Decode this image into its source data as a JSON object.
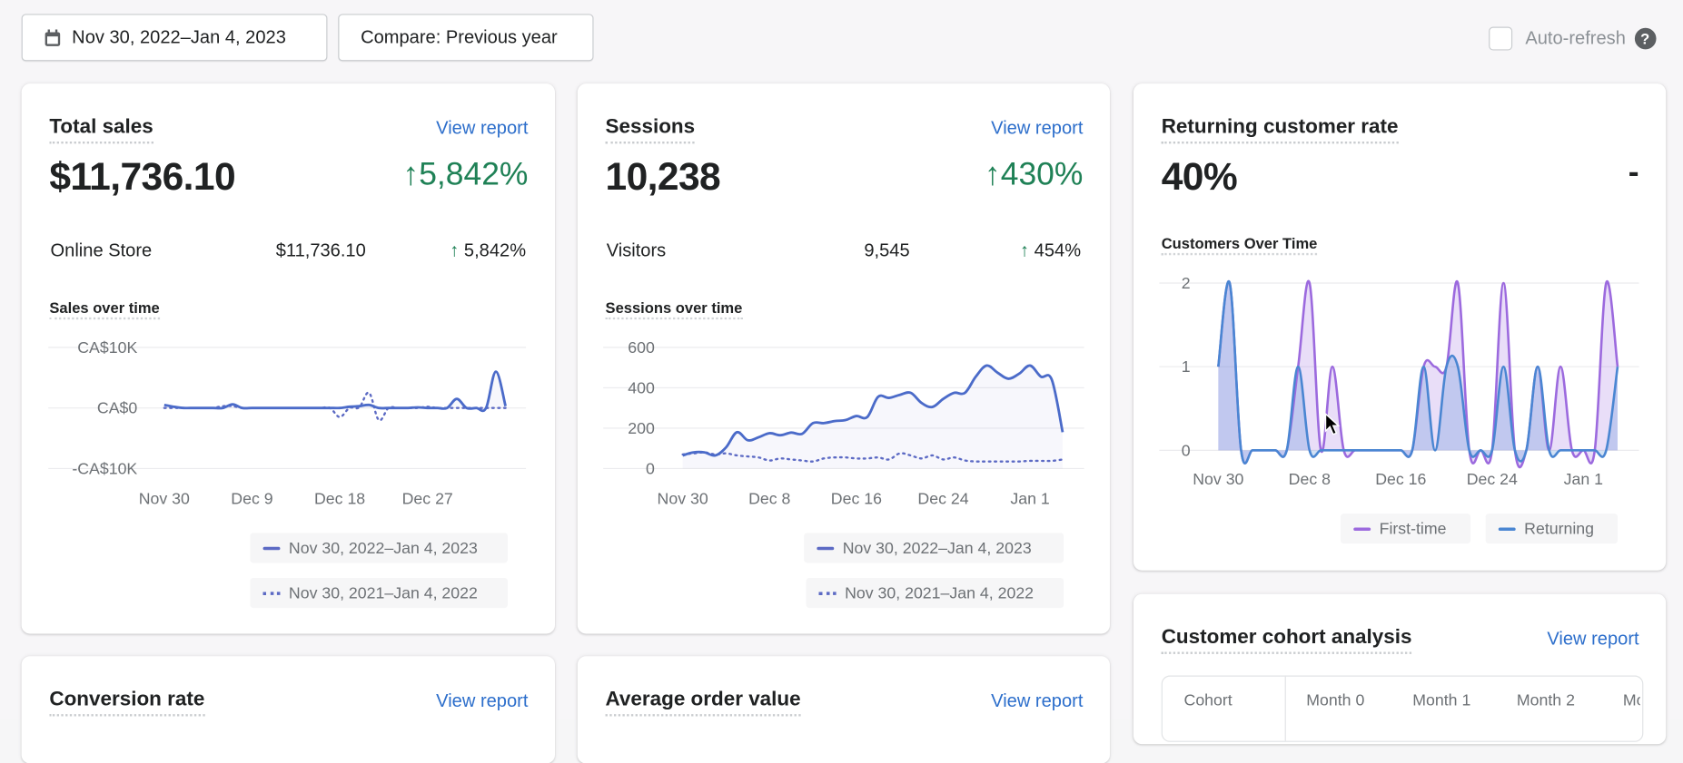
{
  "toolbar": {
    "date_range": "Nov 30, 2022–Jan 4, 2023",
    "compare": "Compare: Previous year",
    "auto_refresh": "Auto-refresh",
    "auto_refresh_checked": false,
    "help": "?"
  },
  "common": {
    "view_report": "View report"
  },
  "total_sales": {
    "title": "Total sales",
    "value": "$11,736.10",
    "change": "5,842%",
    "channel": "Online Store",
    "channel_value": "$11,736.10",
    "channel_change": "5,842%",
    "chart_title": "Sales over time",
    "legend": [
      "Nov 30, 2022–Jan 4, 2023",
      "Nov 30, 2021–Jan 4, 2022"
    ]
  },
  "sessions": {
    "title": "Sessions",
    "value": "10,238",
    "change": "430%",
    "sub_label": "Visitors",
    "sub_value": "9,545",
    "sub_change": "454%",
    "chart_title": "Sessions over time",
    "legend": [
      "Nov 30, 2022–Jan 4, 2023",
      "Nov 30, 2021–Jan 4, 2022"
    ]
  },
  "returning": {
    "title": "Returning customer rate",
    "value": "40%",
    "change": "-",
    "chart_title": "Customers Over Time"
  },
  "cohort": {
    "title": "Customer cohort analysis",
    "columns": [
      "Cohort",
      "Month 0",
      "Month 1",
      "Month 2",
      "Mo"
    ]
  },
  "conversion": {
    "title": "Conversion rate"
  },
  "aov": {
    "title": "Average order value"
  },
  "colors": {
    "primary": "#5c6ac4",
    "line": "#4b6bc9",
    "first_time": "#9c6ade",
    "returning": "#4a86d2",
    "green": "#1f8156",
    "link": "#2c6ecb"
  },
  "chart_data": [
    {
      "type": "line",
      "title": "Sales over time",
      "yticks": [
        "CA$10K",
        "CA$0",
        "-CA$10K"
      ],
      "ylim": [
        -10000,
        10000
      ],
      "xticks": [
        "Nov 30",
        "Dec 9",
        "Dec 18",
        "Dec 27"
      ],
      "series": [
        {
          "name": "Nov 30, 2022–Jan 4, 2023",
          "values": [
            500,
            200,
            0,
            0,
            0,
            0,
            0,
            600,
            0,
            0,
            0,
            0,
            0,
            0,
            0,
            0,
            0,
            0,
            0,
            200,
            300,
            500,
            0,
            0,
            0,
            0,
            100,
            0,
            0,
            0,
            1500,
            0,
            0,
            0,
            6000,
            300
          ]
        },
        {
          "name": "Nov 30, 2021–Jan 4, 2022",
          "values": [
            0,
            0,
            0,
            0,
            0,
            0,
            300,
            300,
            0,
            0,
            0,
            0,
            0,
            0,
            0,
            0,
            0,
            0,
            -1500,
            0,
            100,
            2500,
            -2000,
            0,
            0,
            0,
            0,
            200,
            0,
            0,
            0,
            0,
            0,
            0,
            0,
            0
          ]
        }
      ]
    },
    {
      "type": "line",
      "title": "Sessions over time",
      "yticks": [
        "600",
        "400",
        "200",
        "0"
      ],
      "ylim": [
        0,
        600
      ],
      "xticks": [
        "Nov 30",
        "Dec 8",
        "Dec 16",
        "Dec 24",
        "Jan 1"
      ],
      "series": [
        {
          "name": "Nov 30, 2022–Jan 4, 2023",
          "values": [
            65,
            80,
            80,
            65,
            105,
            180,
            140,
            155,
            175,
            165,
            178,
            172,
            225,
            225,
            235,
            240,
            260,
            255,
            355,
            350,
            365,
            375,
            325,
            305,
            345,
            375,
            375,
            455,
            510,
            475,
            445,
            470,
            510,
            455,
            440,
            180
          ]
        },
        {
          "name": "Nov 30, 2021–Jan 4, 2022",
          "values": [
            70,
            75,
            80,
            70,
            75,
            65,
            60,
            55,
            40,
            50,
            45,
            40,
            35,
            50,
            55,
            55,
            50,
            50,
            55,
            45,
            75,
            65,
            50,
            65,
            45,
            55,
            40,
            35,
            35,
            35,
            35,
            35,
            38,
            38,
            38,
            45
          ]
        }
      ]
    },
    {
      "type": "area",
      "title": "Customers Over Time",
      "yticks": [
        "2",
        "1",
        "0"
      ],
      "ylim": [
        0,
        2
      ],
      "xticks": [
        "Nov 30",
        "Dec 8",
        "Dec 16",
        "Dec 24",
        "Jan 1"
      ],
      "series": [
        {
          "name": "First-time",
          "values": [
            1,
            2,
            0,
            0,
            0,
            0,
            0,
            1,
            2,
            0,
            1,
            0,
            0,
            0,
            0,
            0,
            0,
            0,
            1,
            1,
            1,
            2,
            0,
            0,
            0,
            2,
            0,
            0,
            1,
            0,
            1,
            0,
            0,
            0,
            2,
            1
          ]
        },
        {
          "name": "Returning",
          "values": [
            1,
            2,
            0,
            0,
            0,
            0,
            0,
            1,
            0,
            0,
            0,
            0,
            0,
            0,
            0,
            0,
            0,
            0,
            1,
            0,
            1,
            1,
            0,
            0,
            0,
            1,
            0,
            0,
            1,
            0,
            0,
            0,
            0,
            0,
            0,
            1
          ]
        }
      ]
    }
  ]
}
